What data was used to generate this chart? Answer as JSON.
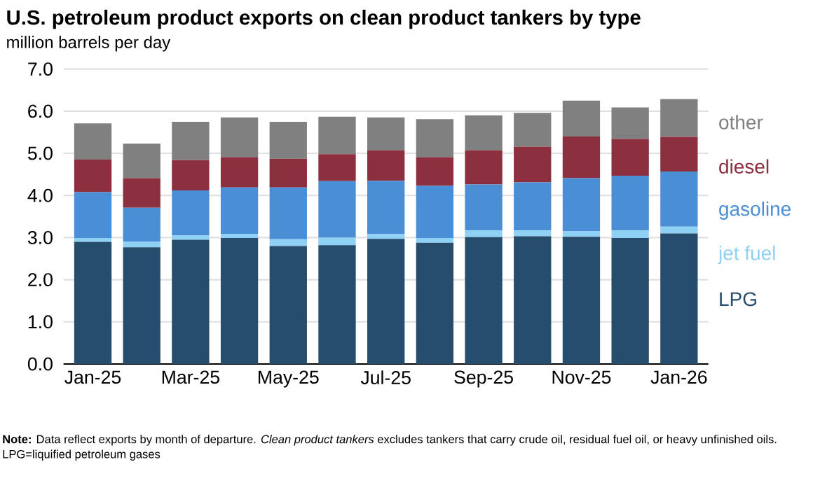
{
  "chart_data": {
    "type": "bar",
    "stacked": true,
    "title": "U.S. petroleum product exports on clean product tankers by type",
    "subtitle": "million barrels per day",
    "categories": [
      "Jan-25",
      null,
      "Mar-25",
      null,
      "May-25",
      null,
      "Jul-25",
      null,
      "Sep-25",
      null,
      "Nov-25",
      null,
      "Jan-26"
    ],
    "series": [
      {
        "name": "LPG",
        "color": "#264d6c",
        "values": [
          2.9,
          2.77,
          2.95,
          2.99,
          2.8,
          2.82,
          2.97,
          2.88,
          3.01,
          3.03,
          3.02,
          2.99,
          3.1
        ]
      },
      {
        "name": "jet fuel",
        "color": "#8fd0f5",
        "values": [
          0.09,
          0.13,
          0.1,
          0.1,
          0.16,
          0.18,
          0.11,
          0.11,
          0.16,
          0.14,
          0.13,
          0.18,
          0.16
        ]
      },
      {
        "name": "gasoline",
        "color": "#4a8fd6",
        "values": [
          1.09,
          0.81,
          1.07,
          1.1,
          1.23,
          1.34,
          1.27,
          1.24,
          1.09,
          1.14,
          1.26,
          1.3,
          1.31
        ]
      },
      {
        "name": "diesel",
        "color": "#8c2f3f",
        "values": [
          0.77,
          0.7,
          0.72,
          0.72,
          0.68,
          0.64,
          0.72,
          0.68,
          0.81,
          0.85,
          0.99,
          0.87,
          0.82
        ]
      },
      {
        "name": "other",
        "color": "#808080",
        "values": [
          0.86,
          0.82,
          0.91,
          0.94,
          0.88,
          0.89,
          0.78,
          0.9,
          0.83,
          0.8,
          0.85,
          0.75,
          0.9
        ]
      }
    ],
    "ylim": [
      0,
      7
    ],
    "yticks": [
      {
        "value": 0,
        "label": "0.0"
      },
      {
        "value": 1,
        "label": "1.0"
      },
      {
        "value": 2,
        "label": "2.0"
      },
      {
        "value": 3,
        "label": "3.0"
      },
      {
        "value": 4,
        "label": "4.0"
      },
      {
        "value": 5,
        "label": "5.0"
      },
      {
        "value": 6,
        "label": "6.0"
      },
      {
        "value": 7,
        "label": "7.0"
      }
    ],
    "grid": "y",
    "legend": "right",
    "annotations": [
      "**Note:** Data reflect exports by month of departure. *Clean product tankers* excludes tankers that carry crude oil, residual fuel oil, or heavy unfinished oils.",
      "LPG=liquified petroleum gases"
    ]
  }
}
